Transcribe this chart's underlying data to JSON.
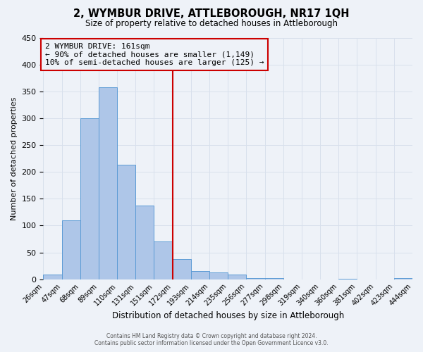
{
  "title": "2, WYMBUR DRIVE, ATTLEBOROUGH, NR17 1QH",
  "subtitle": "Size of property relative to detached houses in Attleborough",
  "xlabel": "Distribution of detached houses by size in Attleborough",
  "ylabel": "Number of detached properties",
  "footer_line1": "Contains HM Land Registry data © Crown copyright and database right 2024.",
  "footer_line2": "Contains public sector information licensed under the Open Government Licence v3.0.",
  "bin_labels": [
    "26sqm",
    "47sqm",
    "68sqm",
    "89sqm",
    "110sqm",
    "131sqm",
    "151sqm",
    "172sqm",
    "193sqm",
    "214sqm",
    "235sqm",
    "256sqm",
    "277sqm",
    "298sqm",
    "319sqm",
    "340sqm",
    "360sqm",
    "381sqm",
    "402sqm",
    "423sqm",
    "444sqm"
  ],
  "counts": [
    8,
    110,
    300,
    358,
    213,
    137,
    70,
    38,
    15,
    12,
    8,
    2,
    2,
    0,
    0,
    0,
    1,
    0,
    0,
    2
  ],
  "bar_color": "#aec6e8",
  "bar_edge_color": "#5b9bd5",
  "vline_bin_index": 7,
  "vline_color": "#cc0000",
  "annotation_title": "2 WYMBUR DRIVE: 161sqm",
  "annotation_line1": "← 90% of detached houses are smaller (1,149)",
  "annotation_line2": "10% of semi-detached houses are larger (125) →",
  "annotation_box_edge_color": "#cc0000",
  "ylim": [
    0,
    450
  ],
  "bg_color": "#eef2f8",
  "grid_color": "#d8e0ec"
}
